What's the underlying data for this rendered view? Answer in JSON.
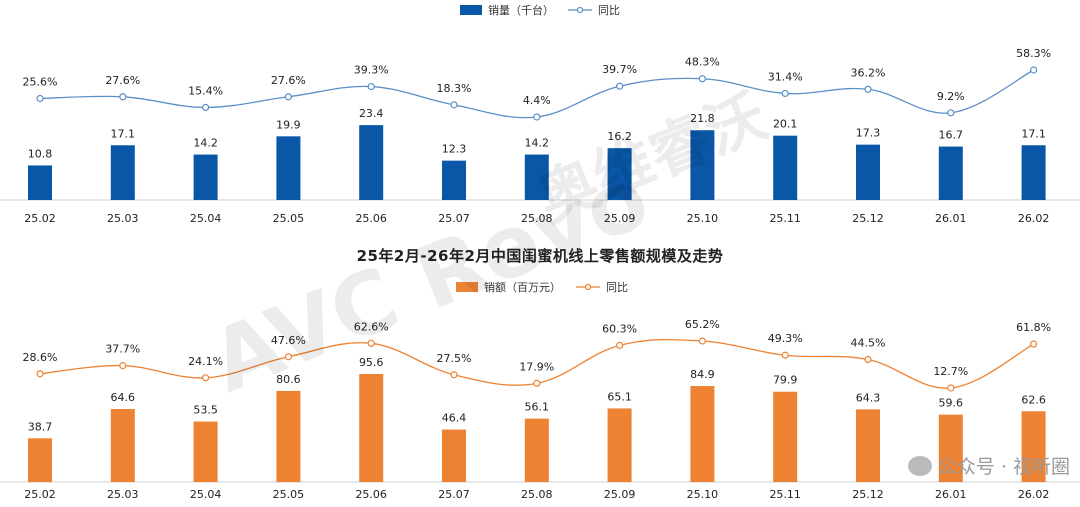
{
  "chart_data": [
    {
      "type": "bar",
      "categories": [
        "25.02",
        "25.03",
        "25.04",
        "25.05",
        "25.06",
        "25.07",
        "25.08",
        "25.09",
        "25.10",
        "25.11",
        "25.12",
        "26.01",
        "26.02"
      ],
      "series": [
        {
          "name": "销量（千台）",
          "values": [
            10.8,
            17.1,
            14.2,
            19.9,
            23.4,
            12.3,
            14.2,
            16.2,
            21.8,
            20.1,
            17.3,
            16.7,
            17.1
          ],
          "color": "#0a57a8"
        },
        {
          "name": "同比",
          "type": "line",
          "values": [
            25.6,
            27.6,
            15.4,
            27.6,
            39.3,
            18.3,
            4.4,
            39.7,
            48.3,
            31.4,
            36.2,
            9.2,
            58.3
          ],
          "labels": [
            "25.6%",
            "27.6%",
            "15.4%",
            "27.6%",
            "39.3%",
            "18.3%",
            "4.4%",
            "39.7%",
            "48.3%",
            "31.4%",
            "36.2%",
            "9.2%",
            "58.3%"
          ],
          "color": "#5b8fc7"
        }
      ],
      "legend": "top-center"
    },
    {
      "type": "bar",
      "title": "25年2月-26年2月中国闺蜜机线上零售额规模及走势",
      "categories": [
        "25.02",
        "25.03",
        "25.04",
        "25.05",
        "25.06",
        "25.07",
        "25.08",
        "25.09",
        "25.10",
        "25.11",
        "25.12",
        "26.01",
        "26.02"
      ],
      "series": [
        {
          "name": "销额（百万元）",
          "values": [
            38.7,
            64.6,
            53.5,
            80.6,
            95.6,
            46.4,
            56.1,
            65.1,
            84.9,
            79.9,
            64.3,
            59.6,
            62.6
          ],
          "color": "#ee8233"
        },
        {
          "name": "同比",
          "type": "line",
          "values": [
            28.6,
            37.7,
            24.1,
            47.6,
            62.6,
            27.5,
            17.9,
            60.3,
            65.2,
            49.3,
            44.5,
            12.7,
            61.8
          ],
          "labels": [
            "28.6%",
            "37.7%",
            "24.1%",
            "47.6%",
            "62.6%",
            "27.5%",
            "17.9%",
            "60.3%",
            "65.2%",
            "49.3%",
            "44.5%",
            "12.7%",
            "61.8%"
          ],
          "color": "#ee8233"
        }
      ],
      "legend": "top-center"
    }
  ],
  "watermark": {
    "text": "AVC Revo",
    "cn": "奥维睿沃"
  },
  "footer": {
    "wechat": "公众号 · 视听圈"
  }
}
